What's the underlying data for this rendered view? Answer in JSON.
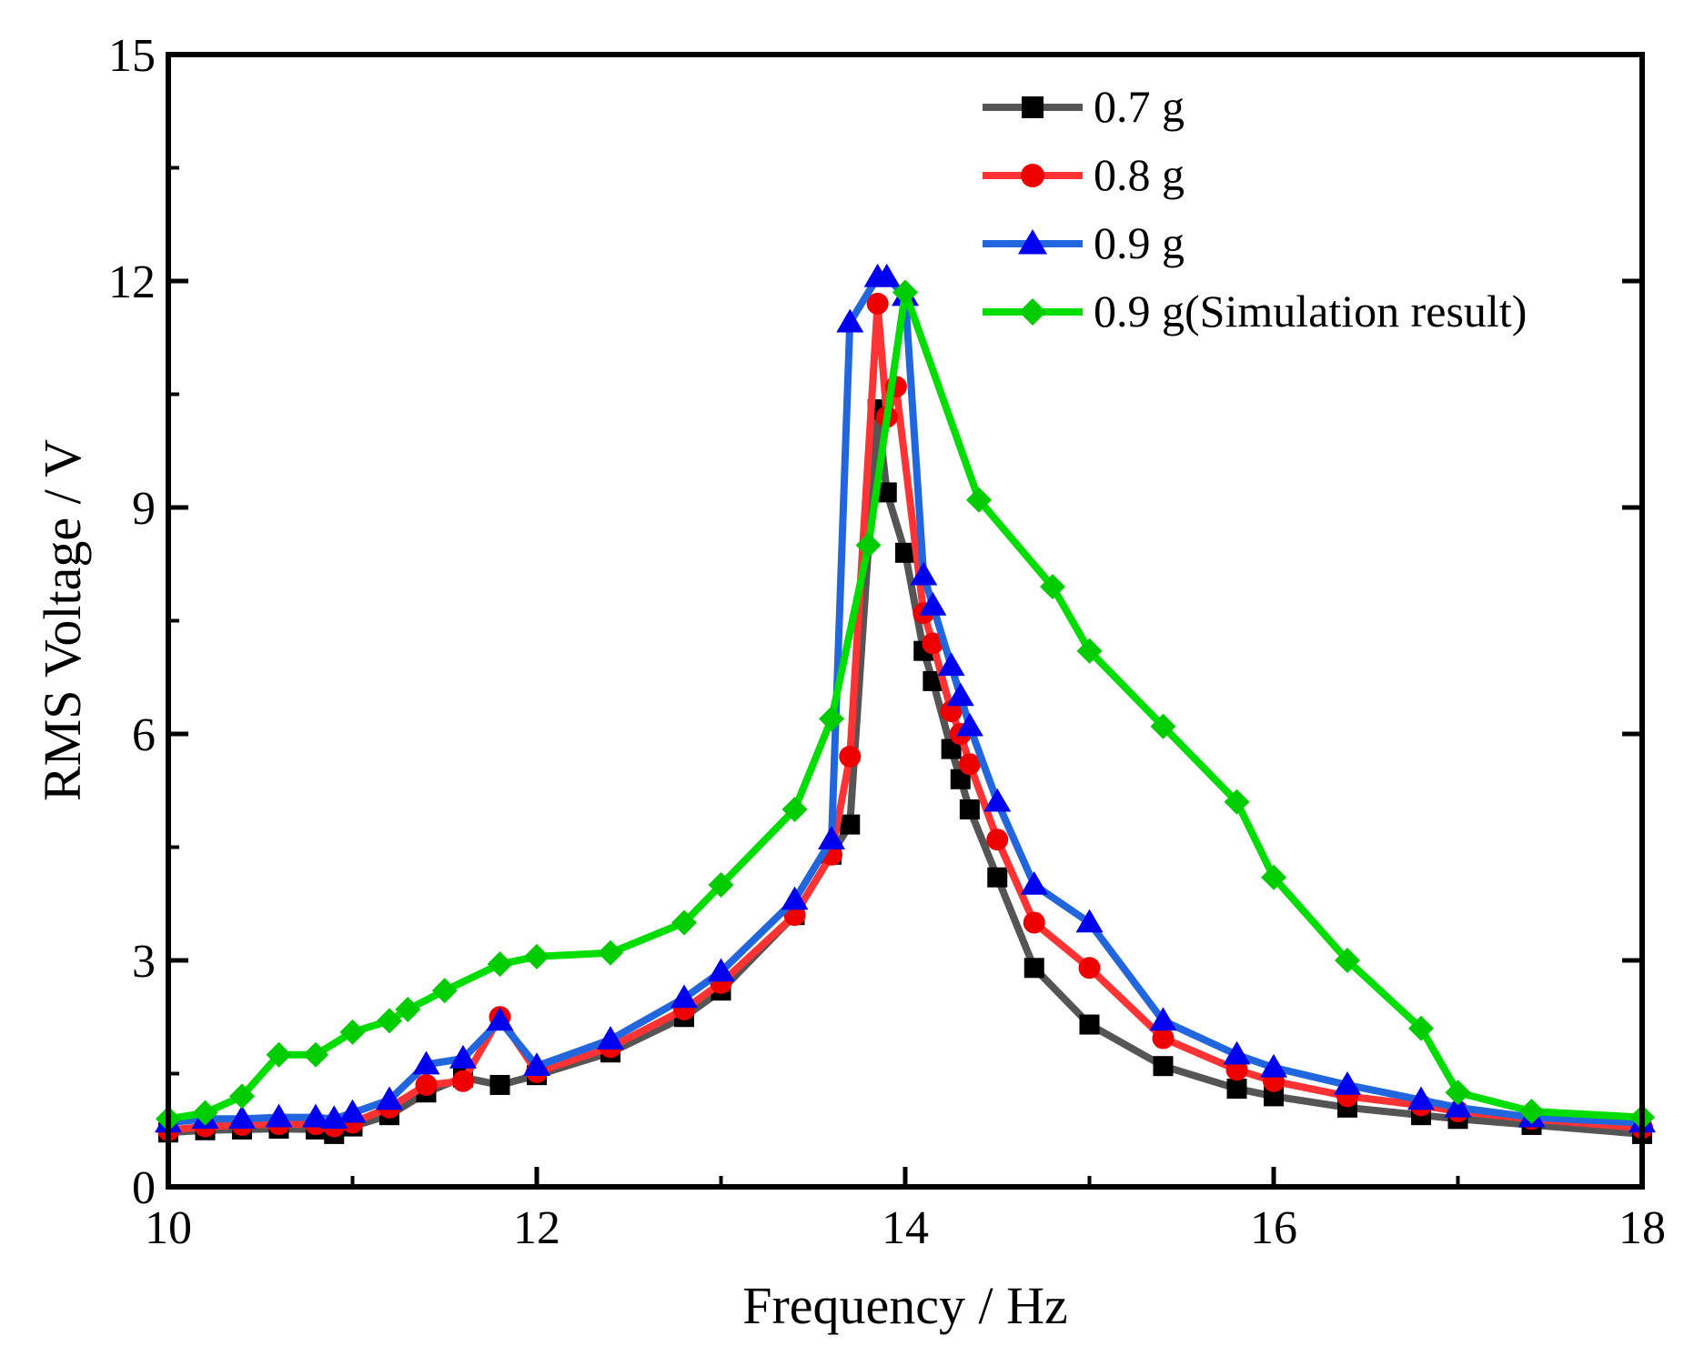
{
  "chart_data": {
    "type": "line",
    "title": "",
    "xlabel": "Frequency / Hz",
    "ylabel": "RMS Voltage / V",
    "xlim": [
      10,
      18
    ],
    "ylim": [
      0,
      15
    ],
    "xticks": [
      10,
      12,
      14,
      16,
      18
    ],
    "yticks": [
      0,
      3,
      6,
      9,
      12,
      15
    ],
    "grid": false,
    "legend_position": "top-right",
    "series": [
      {
        "name": "0.7 g",
        "color": "#555555",
        "marker_color": "#000000",
        "marker": "square",
        "points": [
          [
            10,
            0.72
          ],
          [
            10.2,
            0.75
          ],
          [
            10.4,
            0.76
          ],
          [
            10.6,
            0.77
          ],
          [
            10.8,
            0.76
          ],
          [
            10.9,
            0.7
          ],
          [
            11,
            0.8
          ],
          [
            11.2,
            0.95
          ],
          [
            11.4,
            1.25
          ],
          [
            11.6,
            1.45
          ],
          [
            11.8,
            1.35
          ],
          [
            12,
            1.48
          ],
          [
            12.4,
            1.78
          ],
          [
            12.8,
            2.25
          ],
          [
            13,
            2.6
          ],
          [
            13.4,
            3.6
          ],
          [
            13.6,
            4.4
          ],
          [
            13.7,
            4.8
          ],
          [
            13.85,
            10.3
          ],
          [
            13.9,
            9.2
          ],
          [
            14,
            8.4
          ],
          [
            14.1,
            7.1
          ],
          [
            14.15,
            6.7
          ],
          [
            14.25,
            5.8
          ],
          [
            14.3,
            5.4
          ],
          [
            14.35,
            5.0
          ],
          [
            14.5,
            4.1
          ],
          [
            14.7,
            2.9
          ],
          [
            15,
            2.15
          ],
          [
            15.4,
            1.6
          ],
          [
            15.8,
            1.3
          ],
          [
            16,
            1.2
          ],
          [
            16.4,
            1.05
          ],
          [
            16.8,
            0.95
          ],
          [
            17,
            0.9
          ],
          [
            17.4,
            0.82
          ],
          [
            18,
            0.7
          ]
        ]
      },
      {
        "name": "0.8 g",
        "color": "#ff3333",
        "marker_color": "#ee0000",
        "marker": "circle",
        "points": [
          [
            10,
            0.75
          ],
          [
            10.2,
            0.8
          ],
          [
            10.4,
            0.82
          ],
          [
            10.6,
            0.83
          ],
          [
            10.8,
            0.83
          ],
          [
            10.9,
            0.8
          ],
          [
            11,
            0.85
          ],
          [
            11.2,
            1.05
          ],
          [
            11.4,
            1.35
          ],
          [
            11.6,
            1.4
          ],
          [
            11.8,
            2.25
          ],
          [
            12,
            1.52
          ],
          [
            12.4,
            1.85
          ],
          [
            12.8,
            2.35
          ],
          [
            13,
            2.7
          ],
          [
            13.4,
            3.6
          ],
          [
            13.6,
            4.4
          ],
          [
            13.7,
            5.7
          ],
          [
            13.85,
            11.7
          ],
          [
            13.9,
            10.2
          ],
          [
            13.95,
            10.6
          ],
          [
            14.1,
            7.6
          ],
          [
            14.15,
            7.2
          ],
          [
            14.25,
            6.3
          ],
          [
            14.3,
            6.0
          ],
          [
            14.35,
            5.6
          ],
          [
            14.5,
            4.6
          ],
          [
            14.7,
            3.5
          ],
          [
            15,
            2.9
          ],
          [
            15.4,
            1.97
          ],
          [
            15.8,
            1.55
          ],
          [
            16,
            1.4
          ],
          [
            16.4,
            1.2
          ],
          [
            16.8,
            1.08
          ],
          [
            17,
            1.0
          ],
          [
            17.4,
            0.9
          ],
          [
            18,
            0.78
          ]
        ]
      },
      {
        "name": "0.9 g",
        "color": "#2266dd",
        "marker_color": "#0000ee",
        "marker": "triangle",
        "points": [
          [
            10,
            0.85
          ],
          [
            10.2,
            0.9
          ],
          [
            10.4,
            0.9
          ],
          [
            10.6,
            0.92
          ],
          [
            10.8,
            0.92
          ],
          [
            10.9,
            0.9
          ],
          [
            11,
            0.98
          ],
          [
            11.2,
            1.15
          ],
          [
            11.4,
            1.62
          ],
          [
            11.6,
            1.7
          ],
          [
            11.8,
            2.2
          ],
          [
            12,
            1.6
          ],
          [
            12.4,
            1.95
          ],
          [
            12.8,
            2.5
          ],
          [
            13,
            2.85
          ],
          [
            13.4,
            3.8
          ],
          [
            13.6,
            4.6
          ],
          [
            13.7,
            11.45
          ],
          [
            13.85,
            12.05
          ],
          [
            13.9,
            12.05
          ],
          [
            14,
            11.8
          ],
          [
            14.1,
            8.1
          ],
          [
            14.15,
            7.7
          ],
          [
            14.25,
            6.9
          ],
          [
            14.3,
            6.5
          ],
          [
            14.35,
            6.1
          ],
          [
            14.5,
            5.1
          ],
          [
            14.7,
            4.0
          ],
          [
            15,
            3.5
          ],
          [
            15.4,
            2.2
          ],
          [
            15.8,
            1.75
          ],
          [
            16,
            1.58
          ],
          [
            16.4,
            1.35
          ],
          [
            16.8,
            1.15
          ],
          [
            17,
            1.05
          ],
          [
            17.4,
            0.92
          ],
          [
            18,
            0.85
          ]
        ]
      },
      {
        "name": "0.9 g(Simulation result)",
        "color": "#00dd00",
        "marker_color": "#00cc00",
        "marker": "diamond",
        "points": [
          [
            10,
            0.9
          ],
          [
            10.2,
            0.98
          ],
          [
            10.4,
            1.2
          ],
          [
            10.6,
            1.75
          ],
          [
            10.8,
            1.75
          ],
          [
            11,
            2.05
          ],
          [
            11.2,
            2.2
          ],
          [
            11.3,
            2.35
          ],
          [
            11.5,
            2.6
          ],
          [
            11.8,
            2.95
          ],
          [
            12,
            3.05
          ],
          [
            12.4,
            3.1
          ],
          [
            12.8,
            3.5
          ],
          [
            13,
            4.0
          ],
          [
            13.4,
            5.0
          ],
          [
            13.6,
            6.2
          ],
          [
            13.8,
            8.5
          ],
          [
            14,
            11.85
          ],
          [
            14.4,
            9.1
          ],
          [
            14.8,
            7.95
          ],
          [
            15,
            7.1
          ],
          [
            15.4,
            6.1
          ],
          [
            15.8,
            5.1
          ],
          [
            16,
            4.1
          ],
          [
            16.4,
            3.0
          ],
          [
            16.8,
            2.1
          ],
          [
            17,
            1.25
          ],
          [
            17.4,
            1.0
          ],
          [
            18,
            0.92
          ]
        ]
      }
    ]
  }
}
